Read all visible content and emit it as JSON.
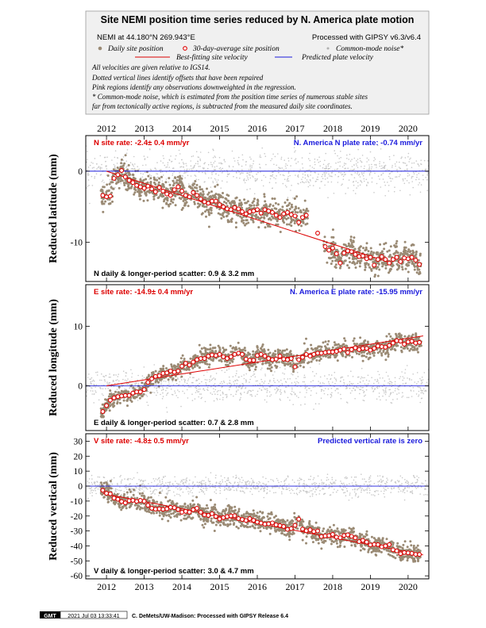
{
  "header": {
    "title": "Site NEMI position time series reduced by N. America plate motion",
    "location": "NEMI at 44.180°N 269.943°E",
    "processing": "Processed with GIPSY v6.3/v6.4",
    "legend": {
      "daily": "Daily site position",
      "avg30": "30-day-average site position",
      "common_mode": "Common-mode noise*",
      "best_fit": "Best-fitting site velocity",
      "predicted": "Predicted plate velocity"
    },
    "notes": [
      "All velocities are given relative to IGS14.",
      "Dotted vertical lines identify offsets that have been repaired",
      "Pink regions identify any observations downweighted in the regression.",
      "* Common-mode noise, which is estimated from the position time series of numerous stable sites",
      "far from tectonically active regions, is subtracted from the measured daily site coordinates."
    ]
  },
  "colors": {
    "daily": "#9a8a74",
    "common_mode": "#c8c8c8",
    "avg30": "#dd0000",
    "best_fit": "#dd0000",
    "predicted": "#1a1adc"
  },
  "x_ticks": [
    "2012",
    "2013",
    "2014",
    "2015",
    "2016",
    "2017",
    "2018",
    "2019",
    "2020"
  ],
  "footer": {
    "badge": "GMT",
    "timestamp": "2021 Jul 03 13:33:41",
    "credit": "C. DeMets/UW-Madison: Processed with GIPSY Release 6.4"
  },
  "chart_data": [
    {
      "type": "scatter",
      "component": "north",
      "ylabel": "Reduced latitude (mm)",
      "xlim": [
        2011.45,
        2020.55
      ],
      "ylim": [
        -15.5,
        5
      ],
      "yticks": [
        0,
        -10
      ],
      "rate_text": "N site rate:  -2.4± 0.4 mm/yr",
      "plate_text": "N. America N plate rate: -0.74 mm/yr",
      "scatter_text": "N daily & longer-period scatter:   0.9 &   3.2 mm",
      "predicted_line": [
        [
          2011.45,
          0
        ],
        [
          2020.55,
          0
        ]
      ],
      "best_fit_line": [
        [
          2012.0,
          0.0
        ],
        [
          2019.5,
          -12.8
        ]
      ],
      "avg30": [
        [
          2011.9,
          -3.4
        ],
        [
          2012.0,
          -3.6
        ],
        [
          2012.1,
          -3.5
        ],
        [
          2012.2,
          -1.0
        ],
        [
          2012.3,
          -0.5
        ],
        [
          2012.4,
          0.1
        ],
        [
          2012.5,
          -0.8
        ],
        [
          2012.6,
          -1.3
        ],
        [
          2012.7,
          -1.6
        ],
        [
          2012.8,
          -2.0
        ],
        [
          2012.9,
          -2.2
        ],
        [
          2013.0,
          -2.4
        ],
        [
          2013.1,
          -2.1
        ],
        [
          2013.2,
          -2.5
        ],
        [
          2013.3,
          -2.9
        ],
        [
          2013.4,
          -2.3
        ],
        [
          2013.5,
          -2.8
        ],
        [
          2013.6,
          -3.2
        ],
        [
          2013.7,
          -3.4
        ],
        [
          2013.8,
          -2.6
        ],
        [
          2013.9,
          -2.2
        ],
        [
          2014.0,
          -2.8
        ],
        [
          2014.1,
          -3.4
        ],
        [
          2014.2,
          -3.6
        ],
        [
          2014.3,
          -3.0
        ],
        [
          2014.4,
          -3.4
        ],
        [
          2014.5,
          -3.9
        ],
        [
          2014.6,
          -4.3
        ],
        [
          2014.7,
          -4.5
        ],
        [
          2014.8,
          -4.2
        ],
        [
          2014.9,
          -4.2
        ],
        [
          2015.0,
          -4.7
        ],
        [
          2015.1,
          -5.0
        ],
        [
          2015.2,
          -5.3
        ],
        [
          2015.3,
          -5.4
        ],
        [
          2015.4,
          -5.1
        ],
        [
          2015.5,
          -5.3
        ],
        [
          2015.6,
          -5.7
        ],
        [
          2015.7,
          -6.0
        ],
        [
          2015.8,
          -5.7
        ],
        [
          2015.9,
          -5.6
        ],
        [
          2016.0,
          -5.4
        ],
        [
          2016.1,
          -5.9
        ],
        [
          2016.2,
          -5.4
        ],
        [
          2016.3,
          -5.6
        ],
        [
          2016.4,
          -5.8
        ],
        [
          2016.5,
          -6.2
        ],
        [
          2016.6,
          -6.5
        ],
        [
          2016.7,
          -6.0
        ],
        [
          2016.8,
          -5.8
        ],
        [
          2016.9,
          -6.1
        ],
        [
          2017.0,
          -6.3
        ],
        [
          2017.1,
          -7.2
        ],
        [
          2017.2,
          -6.5
        ],
        [
          2017.3,
          -6.2
        ],
        [
          2017.6,
          -8.7
        ],
        [
          2017.8,
          -10.6
        ],
        [
          2017.9,
          -11.1
        ],
        [
          2018.0,
          -10.8
        ],
        [
          2018.1,
          -11.6
        ],
        [
          2018.2,
          -12.9
        ],
        [
          2018.3,
          -11.5
        ],
        [
          2018.4,
          -11.2
        ],
        [
          2018.5,
          -11.3
        ],
        [
          2018.6,
          -11.7
        ],
        [
          2018.7,
          -12.0
        ],
        [
          2018.8,
          -11.9
        ],
        [
          2018.9,
          -12.3
        ],
        [
          2019.0,
          -12.1
        ],
        [
          2019.1,
          -13.2
        ],
        [
          2019.2,
          -12.4
        ],
        [
          2019.3,
          -12.0
        ],
        [
          2019.4,
          -12.4
        ],
        [
          2019.5,
          -12.9
        ],
        [
          2019.6,
          -12.4
        ],
        [
          2019.7,
          -12.1
        ],
        [
          2019.8,
          -12.7
        ],
        [
          2019.9,
          -12.2
        ],
        [
          2020.0,
          -12.3
        ],
        [
          2020.1,
          -12.1
        ],
        [
          2020.2,
          -12.5
        ],
        [
          2020.3,
          -13.1
        ]
      ],
      "noise": 0.9
    },
    {
      "type": "scatter",
      "component": "east",
      "ylabel": "Reduced longitude (mm)",
      "xlim": [
        2011.45,
        2020.55
      ],
      "ylim": [
        -7.5,
        17
      ],
      "yticks": [
        10,
        0
      ],
      "rate_text": "E site rate:  -14.9± 0.4 mm/yr",
      "plate_text": "N. America E plate rate: -15.95 mm/yr",
      "scatter_text": "E daily & longer-period scatter:   0.7 &   2.8 mm",
      "predicted_line": [
        [
          2011.45,
          0
        ],
        [
          2020.55,
          0
        ]
      ],
      "best_fit_line": [
        [
          2012.0,
          0.0
        ],
        [
          2020.4,
          8.4
        ]
      ],
      "avg30": [
        [
          2011.9,
          -4.3
        ],
        [
          2012.0,
          -3.3
        ],
        [
          2012.1,
          -2.4
        ],
        [
          2012.2,
          -2.0
        ],
        [
          2012.3,
          -1.8
        ],
        [
          2012.4,
          -1.7
        ],
        [
          2012.5,
          -1.6
        ],
        [
          2012.6,
          -1.6
        ],
        [
          2012.7,
          -1.2
        ],
        [
          2012.8,
          -1.0
        ],
        [
          2012.9,
          -1.0
        ],
        [
          2013.0,
          -0.6
        ],
        [
          2013.1,
          0.6
        ],
        [
          2013.2,
          1.2
        ],
        [
          2013.3,
          1.6
        ],
        [
          2013.4,
          1.7
        ],
        [
          2013.5,
          2.1
        ],
        [
          2013.6,
          2.2
        ],
        [
          2013.7,
          2.5
        ],
        [
          2013.8,
          2.3
        ],
        [
          2013.9,
          2.5
        ],
        [
          2014.0,
          3.3
        ],
        [
          2014.1,
          3.8
        ],
        [
          2014.2,
          3.5
        ],
        [
          2014.3,
          4.0
        ],
        [
          2014.4,
          4.4
        ],
        [
          2014.5,
          4.6
        ],
        [
          2014.6,
          4.6
        ],
        [
          2014.7,
          5.0
        ],
        [
          2014.8,
          5.2
        ],
        [
          2014.9,
          5.1
        ],
        [
          2015.0,
          5.3
        ],
        [
          2015.1,
          4.9
        ],
        [
          2015.2,
          4.6
        ],
        [
          2015.3,
          4.9
        ],
        [
          2015.4,
          5.3
        ],
        [
          2015.5,
          5.5
        ],
        [
          2015.6,
          5.3
        ],
        [
          2015.7,
          4.5
        ],
        [
          2015.8,
          4.3
        ],
        [
          2015.9,
          4.3
        ],
        [
          2016.0,
          5.1
        ],
        [
          2016.1,
          5.3
        ],
        [
          2016.2,
          5.0
        ],
        [
          2016.3,
          4.6
        ],
        [
          2016.4,
          4.4
        ],
        [
          2016.5,
          4.5
        ],
        [
          2016.6,
          5.0
        ],
        [
          2016.7,
          4.5
        ],
        [
          2016.8,
          4.4
        ],
        [
          2016.9,
          4.6
        ],
        [
          2017.0,
          3.2
        ],
        [
          2017.1,
          4.4
        ],
        [
          2017.2,
          4.8
        ],
        [
          2017.3,
          5.3
        ],
        [
          2017.4,
          5.0
        ],
        [
          2017.5,
          5.3
        ],
        [
          2017.6,
          5.5
        ],
        [
          2017.7,
          5.5
        ],
        [
          2017.8,
          5.6
        ],
        [
          2017.9,
          5.7
        ],
        [
          2018.0,
          5.7
        ],
        [
          2018.1,
          5.8
        ],
        [
          2018.2,
          6.0
        ],
        [
          2018.3,
          6.2
        ],
        [
          2018.4,
          5.6
        ],
        [
          2018.5,
          6.1
        ],
        [
          2018.6,
          6.4
        ],
        [
          2018.7,
          6.1
        ],
        [
          2018.8,
          6.3
        ],
        [
          2018.9,
          6.3
        ],
        [
          2019.0,
          6.0
        ],
        [
          2019.1,
          6.3
        ],
        [
          2019.2,
          6.7
        ],
        [
          2019.3,
          6.6
        ],
        [
          2019.4,
          6.5
        ],
        [
          2019.5,
          6.8
        ],
        [
          2019.6,
          7.2
        ],
        [
          2019.7,
          7.6
        ],
        [
          2019.8,
          7.5
        ],
        [
          2019.9,
          7.0
        ],
        [
          2020.0,
          7.4
        ],
        [
          2020.1,
          7.5
        ],
        [
          2020.2,
          7.2
        ],
        [
          2020.3,
          7.3
        ]
      ],
      "noise": 0.7
    },
    {
      "type": "scatter",
      "component": "vertical",
      "ylabel": "Reduced vertical (mm)",
      "xlim": [
        2011.45,
        2020.55
      ],
      "ylim": [
        -62,
        35
      ],
      "yticks": [
        30,
        20,
        10,
        0,
        -10,
        -20,
        -30,
        -40,
        -50,
        -60
      ],
      "rate_text": "V site rate:  -4.8± 0.5 mm/yr",
      "plate_text": "Predicted vertical rate is zero",
      "scatter_text": "V daily & longer-period scatter:   3.0 &   4.7 mm",
      "predicted_line": [
        [
          2011.45,
          0
        ],
        [
          2020.55,
          0
        ]
      ],
      "best_fit_line": [
        [
          2011.9,
          -5.0
        ],
        [
          2020.4,
          -46.0
        ]
      ],
      "avg30": [
        [
          2011.9,
          -2.8
        ],
        [
          2012.0,
          -4.8
        ],
        [
          2012.1,
          -5.2
        ],
        [
          2012.2,
          -8.0
        ],
        [
          2012.3,
          -8.8
        ],
        [
          2012.4,
          -10.3
        ],
        [
          2012.5,
          -11.2
        ],
        [
          2012.6,
          -9.8
        ],
        [
          2012.7,
          -9.5
        ],
        [
          2012.8,
          -10.2
        ],
        [
          2012.9,
          -9.6
        ],
        [
          2013.0,
          -10.1
        ],
        [
          2013.1,
          -12.8
        ],
        [
          2013.2,
          -14.8
        ],
        [
          2013.3,
          -15.4
        ],
        [
          2013.4,
          -15.2
        ],
        [
          2013.5,
          -15.5
        ],
        [
          2013.6,
          -15.2
        ],
        [
          2013.7,
          -14.2
        ],
        [
          2013.8,
          -14.4
        ],
        [
          2013.9,
          -15.6
        ],
        [
          2014.0,
          -17.5
        ],
        [
          2014.1,
          -16.9
        ],
        [
          2014.2,
          -17.4
        ],
        [
          2014.3,
          -15.8
        ],
        [
          2014.4,
          -14.8
        ],
        [
          2014.5,
          -17.5
        ],
        [
          2014.6,
          -19.2
        ],
        [
          2014.7,
          -19.6
        ],
        [
          2014.8,
          -18.5
        ],
        [
          2014.9,
          -20.3
        ],
        [
          2015.0,
          -22.0
        ],
        [
          2015.1,
          -21.1
        ],
        [
          2015.2,
          -20.4
        ],
        [
          2015.3,
          -19.9
        ],
        [
          2015.4,
          -19.8
        ],
        [
          2015.5,
          -21.7
        ],
        [
          2015.6,
          -22.3
        ],
        [
          2015.7,
          -23.0
        ],
        [
          2015.8,
          -21.7
        ],
        [
          2015.9,
          -22.9
        ],
        [
          2016.0,
          -24.1
        ],
        [
          2016.1,
          -24.7
        ],
        [
          2016.2,
          -25.4
        ],
        [
          2016.3,
          -25.2
        ],
        [
          2016.4,
          -24.6
        ],
        [
          2016.5,
          -25.9
        ],
        [
          2016.6,
          -26.4
        ],
        [
          2016.7,
          -27.0
        ],
        [
          2016.8,
          -28.9
        ],
        [
          2016.9,
          -28.4
        ],
        [
          2017.0,
          -26.2
        ],
        [
          2017.1,
          -22.1
        ],
        [
          2017.2,
          -28.7
        ],
        [
          2017.3,
          -29.9
        ],
        [
          2017.4,
          -29.2
        ],
        [
          2017.5,
          -30.4
        ],
        [
          2017.6,
          -30.0
        ],
        [
          2017.7,
          -33.7
        ],
        [
          2017.8,
          -33.3
        ],
        [
          2017.9,
          -33.1
        ],
        [
          2018.0,
          -32.3
        ],
        [
          2018.1,
          -34.1
        ],
        [
          2018.2,
          -34.5
        ],
        [
          2018.3,
          -33.0
        ],
        [
          2018.4,
          -32.6
        ],
        [
          2018.5,
          -33.6
        ],
        [
          2018.6,
          -34.6
        ],
        [
          2018.7,
          -37.1
        ],
        [
          2018.8,
          -36.3
        ],
        [
          2018.9,
          -37.4
        ],
        [
          2019.0,
          -39.3
        ],
        [
          2019.1,
          -39.0
        ],
        [
          2019.2,
          -39.1
        ],
        [
          2019.3,
          -40.6
        ],
        [
          2019.4,
          -40.0
        ],
        [
          2019.5,
          -39.1
        ],
        [
          2019.6,
          -42.6
        ],
        [
          2019.7,
          -43.3
        ],
        [
          2019.8,
          -45.2
        ],
        [
          2019.9,
          -44.4
        ],
        [
          2020.0,
          -44.6
        ],
        [
          2020.1,
          -45.0
        ],
        [
          2020.2,
          -45.6
        ],
        [
          2020.3,
          -45.7
        ]
      ],
      "noise": 3.0
    }
  ]
}
